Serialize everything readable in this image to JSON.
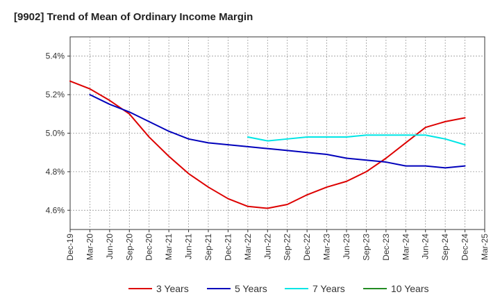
{
  "title": "[9902]  Trend of Mean of Ordinary Income Margin",
  "chart_data": {
    "type": "line",
    "x": [
      "Dec-19",
      "Mar-20",
      "Jun-20",
      "Sep-20",
      "Dec-20",
      "Mar-21",
      "Jun-21",
      "Sep-21",
      "Dec-21",
      "Mar-22",
      "Jun-22",
      "Sep-22",
      "Dec-22",
      "Mar-23",
      "Jun-23",
      "Sep-23",
      "Dec-23",
      "Mar-24",
      "Jun-24",
      "Sep-24",
      "Dec-24",
      "Mar-25"
    ],
    "ylim": [
      4.5,
      5.5
    ],
    "yticks": [
      "4.6%",
      "4.8%",
      "5.0%",
      "5.2%",
      "5.4%"
    ],
    "ytick_values": [
      4.6,
      4.8,
      5.0,
      5.2,
      5.4
    ],
    "grid": true,
    "legend_position": "bottom",
    "series": [
      {
        "name": "3 Years",
        "color": "#dd0000",
        "values": [
          5.27,
          5.23,
          5.17,
          5.1,
          4.98,
          4.88,
          4.79,
          4.72,
          4.66,
          4.62,
          4.61,
          4.63,
          4.68,
          4.72,
          4.75,
          4.8,
          4.87,
          4.95,
          5.03,
          5.06,
          5.08,
          null
        ]
      },
      {
        "name": "5 Years",
        "color": "#0000bb",
        "values": [
          null,
          5.2,
          5.15,
          5.11,
          5.06,
          5.01,
          4.97,
          4.95,
          4.94,
          4.93,
          4.92,
          4.91,
          4.9,
          4.89,
          4.87,
          4.86,
          4.85,
          4.83,
          4.83,
          4.82,
          4.83,
          null
        ]
      },
      {
        "name": "7 Years",
        "color": "#00e5e5",
        "values": [
          null,
          null,
          null,
          null,
          null,
          null,
          null,
          null,
          null,
          4.98,
          4.96,
          4.97,
          4.98,
          4.98,
          4.98,
          4.99,
          4.99,
          4.99,
          4.99,
          4.97,
          4.94,
          null
        ]
      },
      {
        "name": "10 Years",
        "color": "#228b22",
        "values": [
          null,
          null,
          null,
          null,
          null,
          null,
          null,
          null,
          null,
          null,
          null,
          null,
          null,
          null,
          null,
          null,
          null,
          null,
          null,
          null,
          null,
          null
        ]
      }
    ]
  }
}
